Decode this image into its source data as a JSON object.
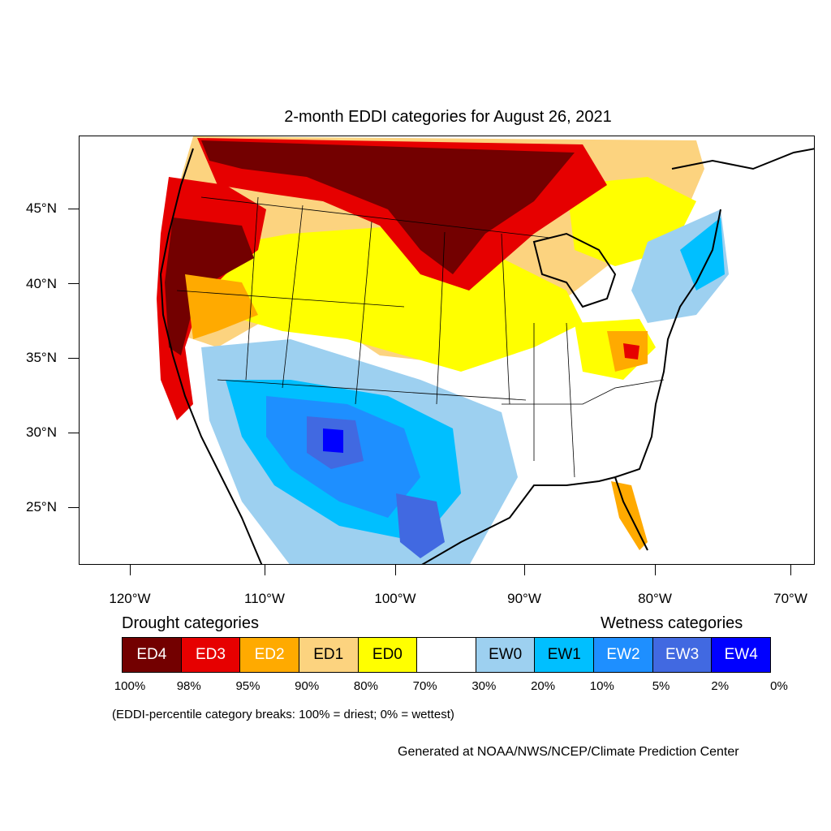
{
  "title": "2-month EDDI categories for August 26, 2021",
  "lat_labels": [
    "45°N",
    "40°N",
    "35°N",
    "30°N",
    "25°N"
  ],
  "lon_labels": [
    "120°W",
    "110°W",
    "100°W",
    "90°W",
    "80°W",
    "70°W"
  ],
  "legend": {
    "drought_heading": "Drought categories",
    "wetness_heading": "Wetness categories",
    "categories": [
      {
        "label": "ED4",
        "color": "#730000",
        "text_color": "#ffffff"
      },
      {
        "label": "ED3",
        "color": "#e60000",
        "text_color": "#ffffff"
      },
      {
        "label": "ED2",
        "color": "#ffaa00",
        "text_color": "#ffffff"
      },
      {
        "label": "ED1",
        "color": "#fcd37f",
        "text_color": "#000000"
      },
      {
        "label": "ED0",
        "color": "#ffff00",
        "text_color": "#000000"
      },
      {
        "label": "",
        "color": "#ffffff",
        "text_color": "#000000"
      },
      {
        "label": "EW0",
        "color": "#9dd0f0",
        "text_color": "#000000"
      },
      {
        "label": "EW1",
        "color": "#00bfff",
        "text_color": "#000000"
      },
      {
        "label": "EW2",
        "color": "#1e8fff",
        "text_color": "#ffffff"
      },
      {
        "label": "EW3",
        "color": "#4169e1",
        "text_color": "#ffffff"
      },
      {
        "label": "EW4",
        "color": "#0000ff",
        "text_color": "#ffffff"
      }
    ],
    "percent_breaks": [
      "100%",
      "98%",
      "95%",
      "90%",
      "80%",
      "70%",
      "30%",
      "20%",
      "10%",
      "5%",
      "2%",
      "0%"
    ]
  },
  "note": "(EDDI-percentile category breaks: 100% = driest; 0% = wettest)",
  "credit": "Generated at NOAA/NWS/NCEP/Climate Prediction Center"
}
